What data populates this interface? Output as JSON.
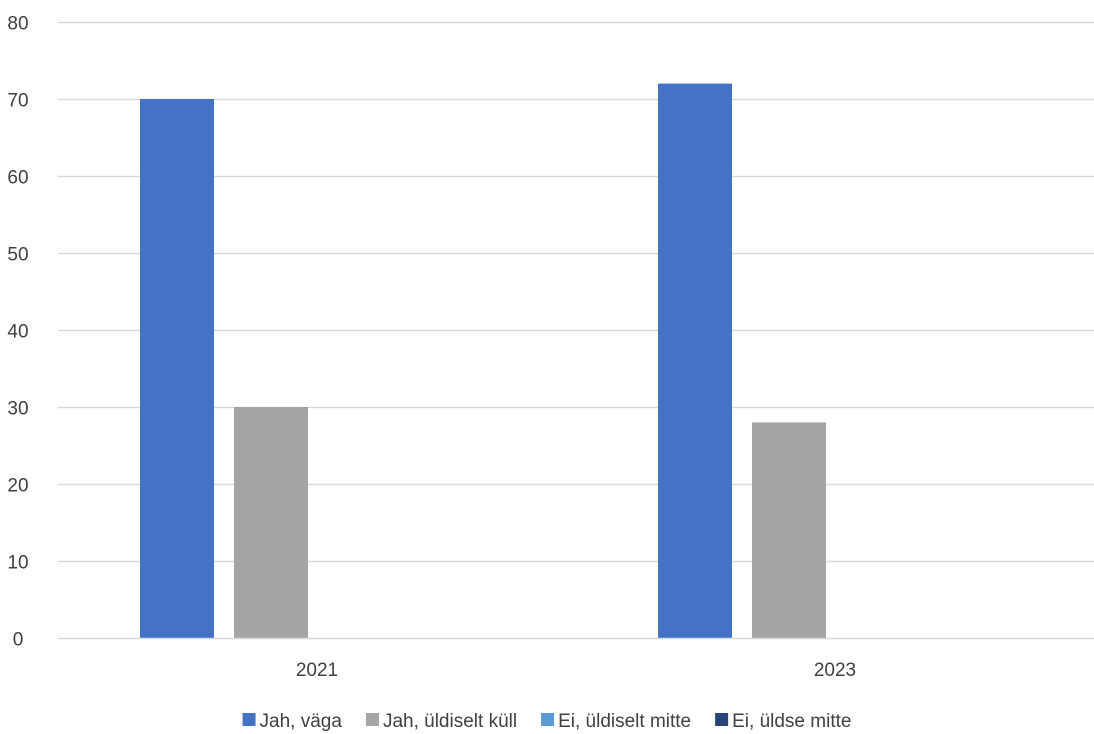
{
  "chart_data": {
    "type": "bar",
    "title": "",
    "xlabel": "",
    "ylabel": "",
    "categories": [
      "2021",
      "2023"
    ],
    "series": [
      {
        "name": "Jah, väga",
        "color": "#4472C4",
        "values": [
          70,
          72
        ]
      },
      {
        "name": "Jah, üldiselt küll",
        "color": "#A5A5A5",
        "values": [
          30,
          28
        ]
      },
      {
        "name": "Ei, üldiselt mitte",
        "color": "#5B9BD5",
        "values": [
          0,
          0
        ]
      },
      {
        "name": "Ei, üldse mitte",
        "color": "#264478",
        "values": [
          0,
          0
        ]
      }
    ],
    "ylim": [
      0,
      80
    ],
    "yticks": [
      0,
      10,
      20,
      30,
      40,
      50,
      60,
      70,
      80
    ],
    "grid": true,
    "legend_position": "bottom"
  }
}
